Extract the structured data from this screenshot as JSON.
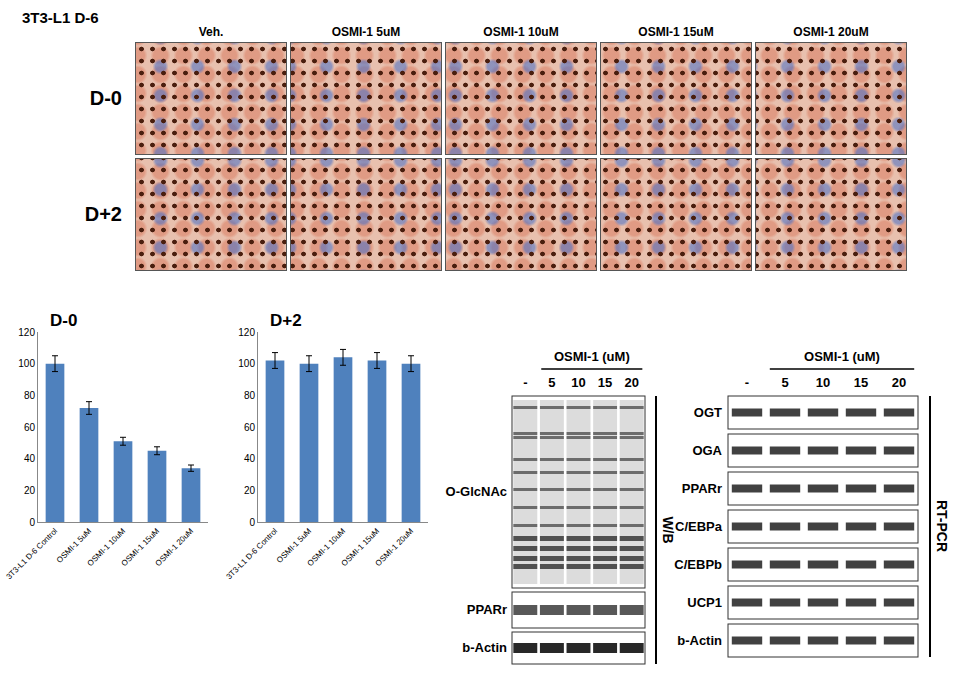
{
  "header": {
    "title": "3T3-L1 D-6"
  },
  "micrographs": {
    "columns": [
      "Veh.",
      "OSMI-1 5uM",
      "OSMI-1 10uM",
      "OSMI-1 15uM",
      "OSMI-1 20uM"
    ],
    "rows": [
      "D-0",
      "D+2"
    ]
  },
  "chart_data": [
    {
      "type": "bar",
      "title": "D-0",
      "categories": [
        "3T3-L1 D-6 Control",
        "OSMI-1 5uM",
        "OSMI-1 10uM",
        "OSMI-1 15uM",
        "OSMI-1 20uM"
      ],
      "values": [
        100,
        72,
        51,
        45,
        34
      ],
      "errors": [
        5,
        4,
        2.5,
        2.5,
        2
      ],
      "color": "#4f81bd",
      "ylim": [
        0,
        120
      ],
      "yticks": [
        0,
        20,
        40,
        60,
        80,
        100,
        120
      ],
      "grid": false
    },
    {
      "type": "bar",
      "title": "D+2",
      "categories": [
        "3T3-L1 D-6 Control",
        "OSMI-1 5uM",
        "OSMI-1 10uM",
        "OSMI-1 15uM",
        "OSMI-1 20uM"
      ],
      "values": [
        102,
        100,
        104,
        102,
        100
      ],
      "errors": [
        5,
        5,
        5,
        5,
        5
      ],
      "color": "#4f81bd",
      "ylim": [
        0,
        120
      ],
      "yticks": [
        0,
        20,
        40,
        60,
        80,
        100,
        120
      ],
      "grid": false
    }
  ],
  "western_blot": {
    "treatment": "OSMI-1 (uM)",
    "lanes": [
      "-",
      "5",
      "10",
      "15",
      "20"
    ],
    "rows": [
      "O-GlcNAc",
      "PPARr",
      "b-Actin"
    ],
    "method": "W/B"
  },
  "rt_pcr": {
    "treatment": "OSMI-1 (uM)",
    "lanes": [
      "-",
      "5",
      "10",
      "15",
      "20"
    ],
    "rows": [
      "OGT",
      "OGA",
      "PPARr",
      "C/EBPa",
      "C/EBPb",
      "UCP1",
      "b-Actin"
    ],
    "method": "RT-PCR"
  }
}
